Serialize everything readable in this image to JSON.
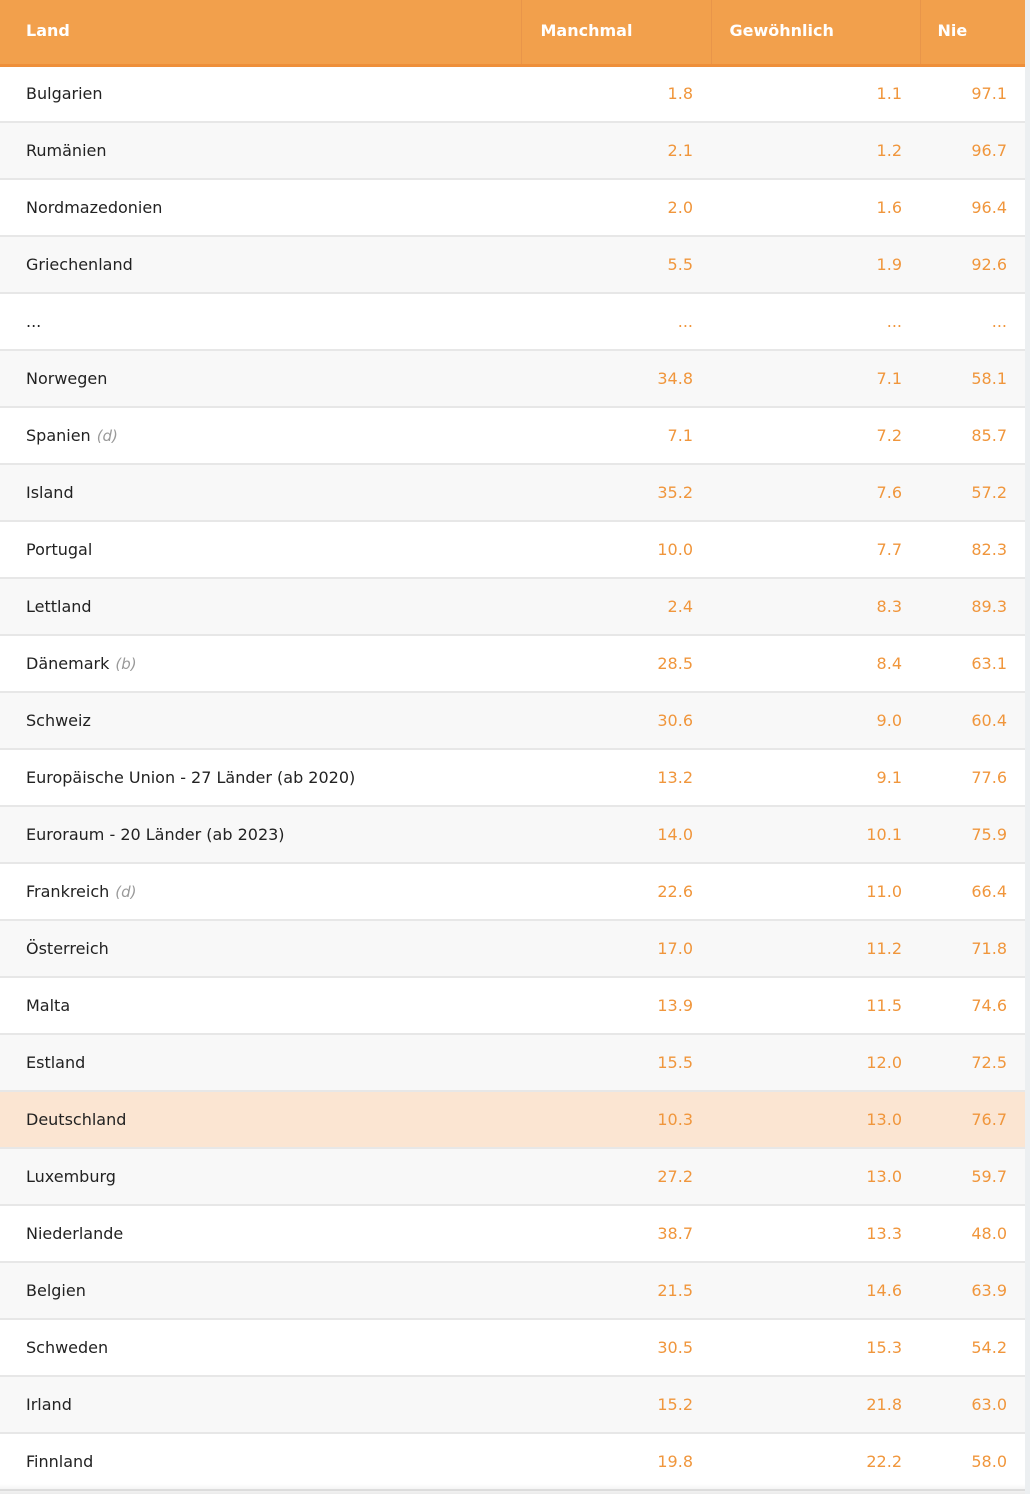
{
  "table": {
    "headers": {
      "land": "Land",
      "manchmal": "Manchmal",
      "gewoehnlich": "Gewöhnlich",
      "nie": "Nie"
    },
    "rows": [
      {
        "land": "Bulgarien",
        "flag": "",
        "manchmal": "1.8",
        "gewoehnlich": "1.1",
        "nie": "97.1"
      },
      {
        "land": "Rumänien",
        "flag": "",
        "manchmal": "2.1",
        "gewoehnlich": "1.2",
        "nie": "96.7"
      },
      {
        "land": "Nordmazedonien",
        "flag": "",
        "manchmal": "2.0",
        "gewoehnlich": "1.6",
        "nie": "96.4"
      },
      {
        "land": "Griechenland",
        "flag": "",
        "manchmal": "5.5",
        "gewoehnlich": "1.9",
        "nie": "92.6"
      },
      {
        "land": "...",
        "flag": "",
        "manchmal": "...",
        "gewoehnlich": "...",
        "nie": "..."
      },
      {
        "land": "Norwegen",
        "flag": "",
        "manchmal": "34.8",
        "gewoehnlich": "7.1",
        "nie": "58.1"
      },
      {
        "land": "Spanien",
        "flag": "(d)",
        "manchmal": "7.1",
        "gewoehnlich": "7.2",
        "nie": "85.7"
      },
      {
        "land": "Island",
        "flag": "",
        "manchmal": "35.2",
        "gewoehnlich": "7.6",
        "nie": "57.2"
      },
      {
        "land": "Portugal",
        "flag": "",
        "manchmal": "10.0",
        "gewoehnlich": "7.7",
        "nie": "82.3"
      },
      {
        "land": "Lettland",
        "flag": "",
        "manchmal": "2.4",
        "gewoehnlich": "8.3",
        "nie": "89.3"
      },
      {
        "land": "Dänemark",
        "flag": "(b)",
        "manchmal": "28.5",
        "gewoehnlich": "8.4",
        "nie": "63.1"
      },
      {
        "land": "Schweiz",
        "flag": "",
        "manchmal": "30.6",
        "gewoehnlich": "9.0",
        "nie": "60.4"
      },
      {
        "land": "Europäische Union - 27 Länder (ab 2020)",
        "flag": "",
        "manchmal": "13.2",
        "gewoehnlich": "9.1",
        "nie": "77.6"
      },
      {
        "land": "Euroraum - 20 Länder (ab 2023)",
        "flag": "",
        "manchmal": "14.0",
        "gewoehnlich": "10.1",
        "nie": "75.9"
      },
      {
        "land": "Frankreich",
        "flag": "(d)",
        "manchmal": "22.6",
        "gewoehnlich": "11.0",
        "nie": "66.4"
      },
      {
        "land": "Österreich",
        "flag": "",
        "manchmal": "17.0",
        "gewoehnlich": "11.2",
        "nie": "71.8"
      },
      {
        "land": "Malta",
        "flag": "",
        "manchmal": "13.9",
        "gewoehnlich": "11.5",
        "nie": "74.6"
      },
      {
        "land": "Estland",
        "flag": "",
        "manchmal": "15.5",
        "gewoehnlich": "12.0",
        "nie": "72.5"
      },
      {
        "land": "Deutschland",
        "flag": "",
        "manchmal": "10.3",
        "gewoehnlich": "13.0",
        "nie": "76.7",
        "highlighted": true
      },
      {
        "land": "Luxemburg",
        "flag": "",
        "manchmal": "27.2",
        "gewoehnlich": "13.0",
        "nie": "59.7"
      },
      {
        "land": "Niederlande",
        "flag": "",
        "manchmal": "38.7",
        "gewoehnlich": "13.3",
        "nie": "48.0"
      },
      {
        "land": "Belgien",
        "flag": "",
        "manchmal": "21.5",
        "gewoehnlich": "14.6",
        "nie": "63.9"
      },
      {
        "land": "Schweden",
        "flag": "",
        "manchmal": "30.5",
        "gewoehnlich": "15.3",
        "nie": "54.2"
      },
      {
        "land": "Irland",
        "flag": "",
        "manchmal": "15.2",
        "gewoehnlich": "21.8",
        "nie": "63.0"
      },
      {
        "land": "Finnland",
        "flag": "",
        "manchmal": "19.8",
        "gewoehnlich": "22.2",
        "nie": "58.0"
      }
    ]
  },
  "colors": {
    "header_bg": "#f2a04c",
    "value_text": "#f0963c",
    "highlight_row": "#fbe5d2"
  }
}
